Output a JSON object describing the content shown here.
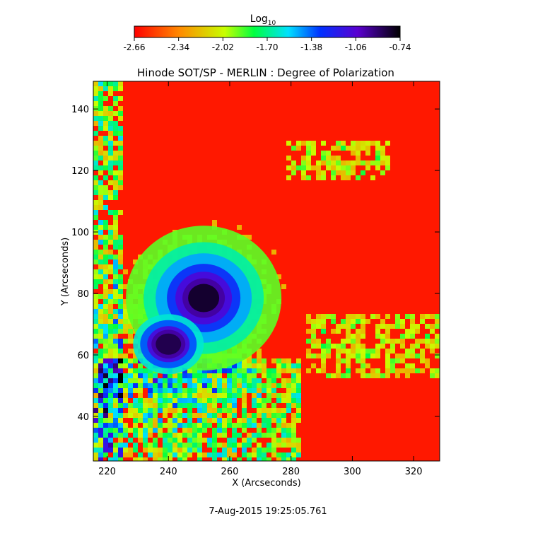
{
  "colorbar": {
    "title_main": "Log",
    "title_sub": "10",
    "ticks": [
      "-2.66",
      "-2.34",
      "-2.02",
      "-1.70",
      "-1.38",
      "-1.06",
      "-0.74"
    ],
    "range": [
      -2.66,
      -0.74
    ]
  },
  "timestamp": "7-Aug-2015 19:25:05.761",
  "chart_data": {
    "type": "heatmap",
    "title": "Hinode SOT/SP - MERLIN : Degree of Polarization",
    "xlabel": "X (Arcseconds)",
    "ylabel": "Y (Arcseconds)",
    "xlim": [
      215.5,
      328.5
    ],
    "ylim": [
      25.5,
      149
    ],
    "xticks": [
      220,
      240,
      260,
      280,
      300,
      320
    ],
    "yticks": [
      40,
      60,
      80,
      100,
      120,
      140
    ],
    "value_scale": "log10",
    "vmin": -2.66,
    "vmax": -0.74,
    "colormap": "rainbow (red low -> green -> blue -> black high)",
    "features": [
      {
        "kind": "umbra",
        "x": 251.5,
        "y": 78.5,
        "value": -0.8
      },
      {
        "kind": "umbra",
        "x": 240,
        "y": 63.5,
        "value": -0.85
      }
    ]
  }
}
